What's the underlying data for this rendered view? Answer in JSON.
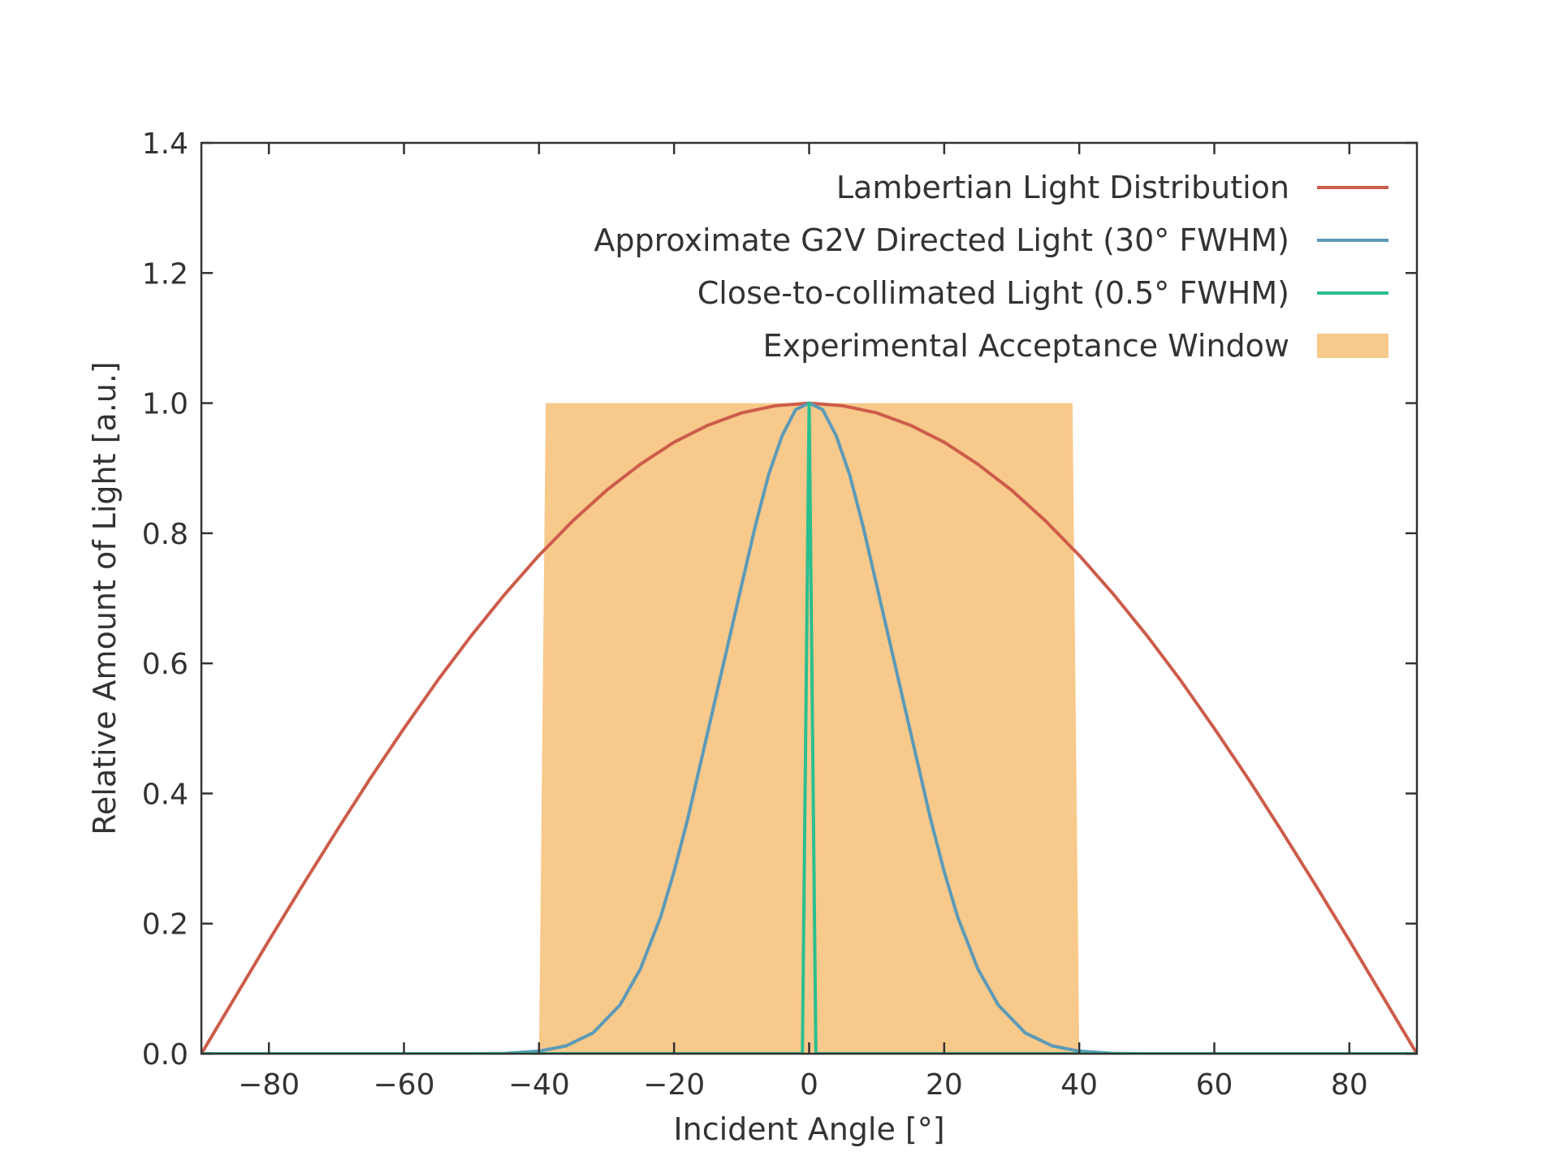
{
  "chart_data": {
    "type": "line",
    "title": "",
    "xlabel": "Incident Angle [°]",
    "ylabel": "Relative Amount of Light [a.u.]",
    "xlim": [
      -90,
      90
    ],
    "ylim": [
      0,
      1.4
    ],
    "x_ticks": [
      -80,
      -60,
      -40,
      -20,
      0,
      20,
      40,
      60,
      80
    ],
    "x_tick_labels": [
      "−80",
      "−60",
      "−40",
      "−20",
      "0",
      "20",
      "40",
      "60",
      "80"
    ],
    "y_ticks": [
      0,
      0.2,
      0.4,
      0.6,
      0.8,
      1.0,
      1.2,
      1.4
    ],
    "y_tick_labels": [
      "0.0",
      "0.2",
      "0.4",
      "0.6",
      "0.8",
      "1.0",
      "1.2",
      "1.4"
    ],
    "grid": false,
    "legend_position": "top-right",
    "acceptance_window": {
      "name": "Experimental Acceptance Window",
      "color": "#f7c98a",
      "polygon": [
        [
          -40,
          0
        ],
        [
          -39,
          1.0
        ],
        [
          39,
          1.0
        ],
        [
          40,
          0
        ]
      ]
    },
    "series": [
      {
        "name": "Lambertian Light Distribution",
        "color": "#cd5c4a",
        "x": [
          -90,
          -85,
          -80,
          -75,
          -70,
          -65,
          -60,
          -55,
          -50,
          -45,
          -40,
          -35,
          -30,
          -25,
          -20,
          -15,
          -10,
          -5,
          0,
          5,
          10,
          15,
          20,
          25,
          30,
          35,
          40,
          45,
          50,
          55,
          60,
          65,
          70,
          75,
          80,
          85,
          90
        ],
        "values": [
          0,
          0.087,
          0.174,
          0.259,
          0.342,
          0.423,
          0.5,
          0.574,
          0.643,
          0.707,
          0.766,
          0.819,
          0.866,
          0.906,
          0.94,
          0.966,
          0.985,
          0.996,
          1.0,
          0.996,
          0.985,
          0.966,
          0.94,
          0.906,
          0.866,
          0.819,
          0.766,
          0.707,
          0.643,
          0.574,
          0.5,
          0.423,
          0.342,
          0.259,
          0.174,
          0.087,
          0
        ]
      },
      {
        "name": "Approximate G2V Directed Light (30° FWHM)",
        "color": "#5b9ab8",
        "x": [
          -90,
          -70,
          -60,
          -50,
          -45,
          -40,
          -36,
          -32,
          -28,
          -25,
          -22,
          -20,
          -18,
          -16,
          -14,
          -12,
          -10,
          -8,
          -6,
          -4,
          -2,
          0,
          2,
          4,
          6,
          8,
          10,
          12,
          14,
          16,
          18,
          20,
          22,
          25,
          28,
          32,
          36,
          40,
          45,
          50,
          60,
          70,
          90
        ],
        "values": [
          0,
          0,
          0,
          0,
          0.0005,
          0.004,
          0.012,
          0.032,
          0.075,
          0.13,
          0.21,
          0.28,
          0.36,
          0.45,
          0.54,
          0.63,
          0.72,
          0.81,
          0.89,
          0.95,
          0.99,
          1.0,
          0.99,
          0.95,
          0.89,
          0.81,
          0.72,
          0.63,
          0.54,
          0.45,
          0.36,
          0.28,
          0.21,
          0.13,
          0.075,
          0.032,
          0.012,
          0.004,
          0.0005,
          0,
          0,
          0,
          0
        ]
      },
      {
        "name": "Close-to-collimated Light (0.5° FWHM)",
        "color": "#2bbf8e",
        "x": [
          -90,
          -1,
          0,
          1,
          90
        ],
        "values": [
          0,
          0,
          1.0,
          0,
          0
        ]
      }
    ]
  }
}
